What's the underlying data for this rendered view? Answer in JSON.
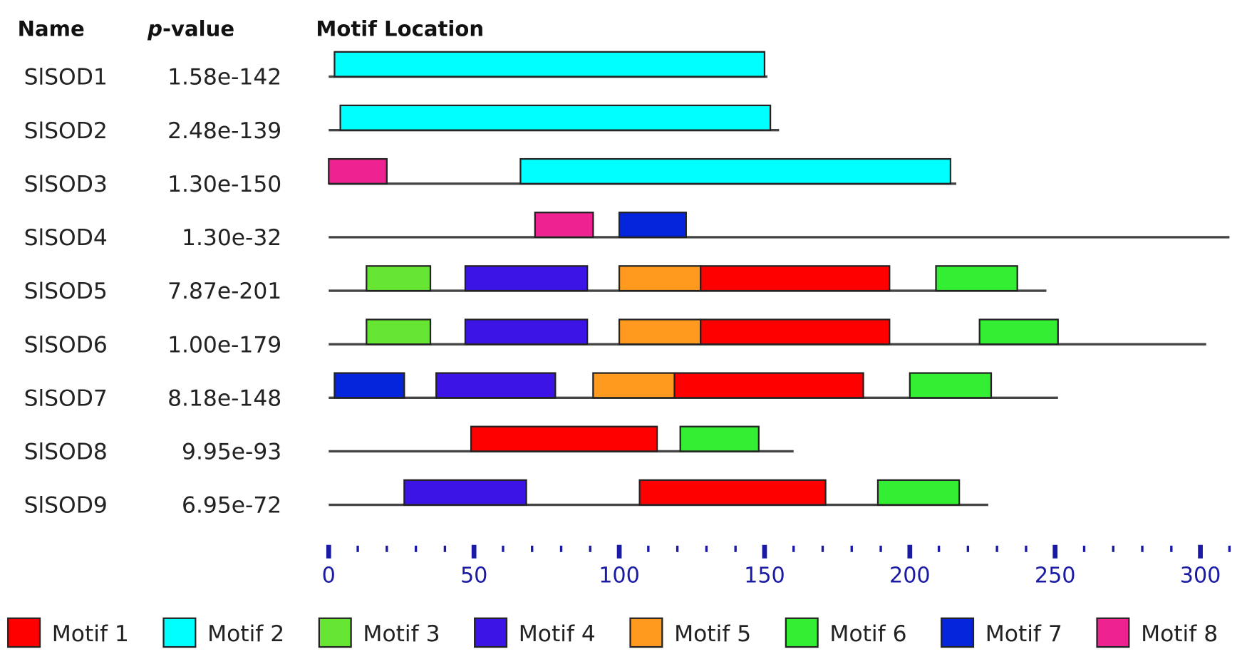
{
  "chart_data": {
    "type": "motif",
    "headers": {
      "name": "Name",
      "pvalue": [
        "p",
        "-value"
      ],
      "location": "Motif Location"
    },
    "xlim": [
      0,
      310
    ],
    "xticks": [
      0,
      50,
      100,
      150,
      200,
      250,
      300
    ],
    "minor_xticks": [
      10,
      20,
      30,
      40,
      60,
      70,
      80,
      90,
      110,
      120,
      130,
      140,
      160,
      170,
      180,
      190,
      210,
      220,
      230,
      240,
      260,
      270,
      280,
      290,
      310
    ],
    "motifs": [
      {
        "name": "Motif 1",
        "color": "#ff0000"
      },
      {
        "name": "Motif 2",
        "color": "#00ffff"
      },
      {
        "name": "Motif 3",
        "color": "#66e633"
      },
      {
        "name": "Motif 4",
        "color": "#3d14e6"
      },
      {
        "name": "Motif 5",
        "color": "#ff9a1f"
      },
      {
        "name": "Motif 6",
        "color": "#33ee33"
      },
      {
        "name": "Motif 7",
        "color": "#0525dd"
      },
      {
        "name": "Motif 8",
        "color": "#ee2290"
      }
    ],
    "rows": [
      {
        "name": "SlSOD1",
        "pvalue": "1.58e-142",
        "length": 151,
        "sites": [
          {
            "motif": 1,
            "start": 2,
            "end": 150
          }
        ]
      },
      {
        "name": "SlSOD2",
        "pvalue": "2.48e-139",
        "length": 155,
        "sites": [
          {
            "motif": 1,
            "start": 4,
            "end": 152
          }
        ]
      },
      {
        "name": "SlSOD3",
        "pvalue": "1.30e-150",
        "length": 216,
        "sites": [
          {
            "motif": 7,
            "start": 0,
            "end": 20
          },
          {
            "motif": 1,
            "start": 66,
            "end": 214
          }
        ]
      },
      {
        "name": "SlSOD4",
        "pvalue": "1.30e-32",
        "length": 310,
        "sites": [
          {
            "motif": 7,
            "start": 71,
            "end": 91
          },
          {
            "motif": 6,
            "start": 100,
            "end": 123
          }
        ]
      },
      {
        "name": "SlSOD5",
        "pvalue": "7.87e-201",
        "length": 247,
        "sites": [
          {
            "motif": 2,
            "start": 13,
            "end": 35
          },
          {
            "motif": 3,
            "start": 47,
            "end": 89
          },
          {
            "motif": 4,
            "start": 100,
            "end": 128
          },
          {
            "motif": 0,
            "start": 128,
            "end": 193
          },
          {
            "motif": 5,
            "start": 209,
            "end": 237
          }
        ]
      },
      {
        "name": "SlSOD6",
        "pvalue": "1.00e-179",
        "length": 302,
        "sites": [
          {
            "motif": 2,
            "start": 13,
            "end": 35
          },
          {
            "motif": 3,
            "start": 47,
            "end": 89
          },
          {
            "motif": 4,
            "start": 100,
            "end": 128
          },
          {
            "motif": 0,
            "start": 128,
            "end": 193
          },
          {
            "motif": 5,
            "start": 224,
            "end": 251
          }
        ]
      },
      {
        "name": "SlSOD7",
        "pvalue": "8.18e-148",
        "length": 251,
        "sites": [
          {
            "motif": 6,
            "start": 2,
            "end": 26
          },
          {
            "motif": 3,
            "start": 37,
            "end": 78
          },
          {
            "motif": 4,
            "start": 91,
            "end": 119
          },
          {
            "motif": 0,
            "start": 119,
            "end": 184
          },
          {
            "motif": 5,
            "start": 200,
            "end": 228
          }
        ]
      },
      {
        "name": "SlSOD8",
        "pvalue": "9.95e-93",
        "length": 160,
        "sites": [
          {
            "motif": 0,
            "start": 49,
            "end": 113
          },
          {
            "motif": 5,
            "start": 121,
            "end": 148
          }
        ]
      },
      {
        "name": "SlSOD9",
        "pvalue": "6.95e-72",
        "length": 227,
        "sites": [
          {
            "motif": 3,
            "start": 26,
            "end": 68
          },
          {
            "motif": 0,
            "start": 107,
            "end": 171
          },
          {
            "motif": 5,
            "start": 189,
            "end": 217
          }
        ]
      }
    ]
  }
}
